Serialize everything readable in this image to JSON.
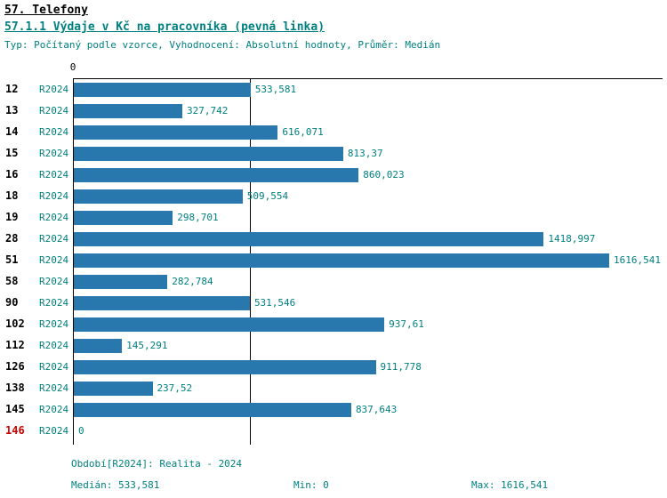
{
  "header": {
    "title1": "57. Telefony",
    "title2": "57.1.1 Výdaje v Kč na pracovníka (pevná linka)",
    "subtitle": "Typ: Počítaný podle vzorce, Vyhodnocení: Absolutní hodnoty, Průměr: Medián"
  },
  "chart_data": {
    "type": "bar",
    "orientation": "horizontal",
    "title": "57.1.1 Výdaje v Kč na pracovníka (pevná linka)",
    "axis_top_label": "0",
    "period_label": "R2024",
    "categories": [
      "12",
      "13",
      "14",
      "15",
      "16",
      "18",
      "19",
      "28",
      "51",
      "58",
      "90",
      "102",
      "112",
      "126",
      "138",
      "145",
      "146"
    ],
    "values": [
      533.581,
      327.742,
      616.071,
      813.37,
      860.023,
      509.554,
      298.701,
      1418.997,
      1616.541,
      282.784,
      531.546,
      937.61,
      145.291,
      911.778,
      237.52,
      837.643,
      0
    ],
    "value_labels": [
      "533,581",
      "327,742",
      "616,071",
      "813,37",
      "860,023",
      "509,554",
      "298,701",
      "1418,997",
      "1616,541",
      "282,784",
      "531,546",
      "937,61",
      "145,291",
      "911,778",
      "237,52",
      "837,643",
      "0"
    ],
    "red_categories": [
      "146"
    ],
    "median": 533.581,
    "xlim": [
      0,
      1616.541
    ],
    "legend": "none",
    "grid": "median-line-only",
    "bar_color": "#2878AE",
    "text_color": "#008080",
    "red_color": "#cc0000"
  },
  "footer": {
    "period": "Období[R2024]: Realita - 2024",
    "median": "Medián: 533,581",
    "min": "Min: 0",
    "max": "Max: 1616,541"
  }
}
